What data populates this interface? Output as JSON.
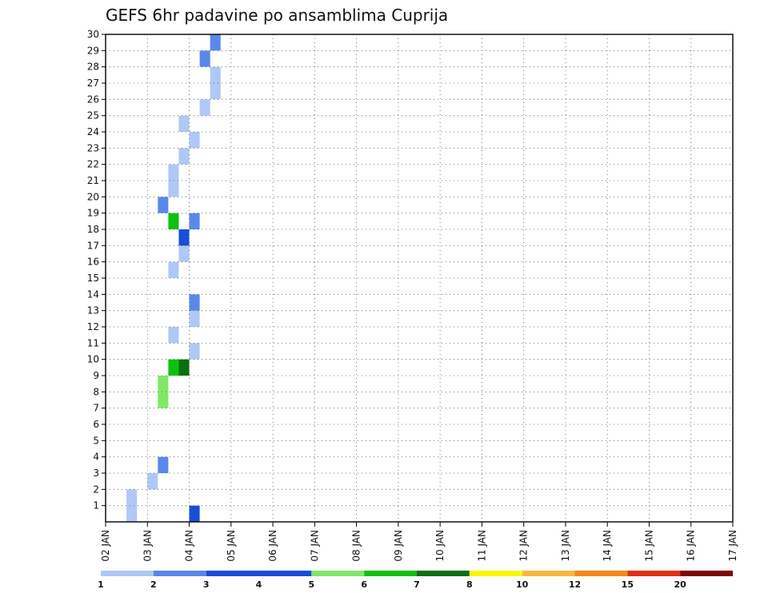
{
  "chart_data": {
    "type": "heatmap",
    "title": "GEFS 6hr padavine po ansamblima Cuprija",
    "y_ticks": [
      "1",
      "2",
      "3",
      "4",
      "5",
      "6",
      "7",
      "8",
      "9",
      "10",
      "11",
      "12",
      "13",
      "14",
      "15",
      "16",
      "17",
      "18",
      "19",
      "20",
      "21",
      "22",
      "23",
      "24",
      "25",
      "26",
      "27",
      "28",
      "29",
      "30"
    ],
    "x_ticks": [
      "02 JAN",
      "03 JAN",
      "04 JAN",
      "05 JAN",
      "06 JAN",
      "07 JAN",
      "08 JAN",
      "09 JAN",
      "10 JAN",
      "11 JAN",
      "12 JAN",
      "13 JAN",
      "14 JAN",
      "15 JAN",
      "16 JAN",
      "17 JAN"
    ],
    "x_range": [
      0,
      60
    ],
    "y_range": [
      0,
      30
    ],
    "grid": true,
    "colorbar": {
      "placement": "bottom",
      "labels": [
        "1",
        "2",
        "3",
        "4",
        "5",
        "6",
        "7",
        "8",
        "10",
        "12",
        "15",
        "20"
      ],
      "colors": [
        "#b0c8f5",
        "#5a88ea",
        "#1a4ed8",
        "#1a4ed8",
        "#80e868",
        "#10c010",
        "#0a7010",
        "#f8f808",
        "#f8b840",
        "#f88818",
        "#e03010",
        "#800808"
      ]
    },
    "cells": [
      {
        "x": 2,
        "y": 0,
        "v": 1
      },
      {
        "x": 2,
        "y": 1,
        "v": 1
      },
      {
        "x": 4,
        "y": 2,
        "v": 1
      },
      {
        "x": 5,
        "y": 3,
        "v": 2
      },
      {
        "x": 8,
        "y": 0,
        "v": 3
      },
      {
        "x": 5,
        "y": 7,
        "v": 5
      },
      {
        "x": 5,
        "y": 8,
        "v": 5
      },
      {
        "x": 6,
        "y": 9,
        "v": 6
      },
      {
        "x": 7,
        "y": 9,
        "v": 7
      },
      {
        "x": 8,
        "y": 10,
        "v": 1
      },
      {
        "x": 6,
        "y": 11,
        "v": 1
      },
      {
        "x": 8,
        "y": 12,
        "v": 1
      },
      {
        "x": 8,
        "y": 13,
        "v": 2
      },
      {
        "x": 8,
        "y": 18,
        "v": 2
      },
      {
        "x": 6,
        "y": 15,
        "v": 1
      },
      {
        "x": 7,
        "y": 16,
        "v": 1
      },
      {
        "x": 7,
        "y": 17,
        "v": 3
      },
      {
        "x": 6,
        "y": 18,
        "v": 6
      },
      {
        "x": 5,
        "y": 19,
        "v": 2
      },
      {
        "x": 6,
        "y": 20,
        "v": 1
      },
      {
        "x": 6,
        "y": 21,
        "v": 1
      },
      {
        "x": 7,
        "y": 22,
        "v": 1
      },
      {
        "x": 8,
        "y": 23,
        "v": 1
      },
      {
        "x": 7,
        "y": 24,
        "v": 1
      },
      {
        "x": 9,
        "y": 25,
        "v": 1
      },
      {
        "x": 10,
        "y": 26,
        "v": 1
      },
      {
        "x": 10,
        "y": 27,
        "v": 1
      },
      {
        "x": 9,
        "y": 28,
        "v": 2
      },
      {
        "x": 10,
        "y": 29,
        "v": 2
      }
    ]
  }
}
